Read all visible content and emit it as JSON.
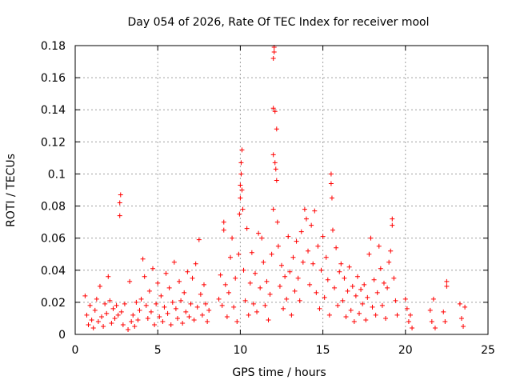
{
  "chart_data": {
    "type": "scatter",
    "title": "Day 054 of 2026, Rate Of TEC Index for receiver mool",
    "xlabel": "GPS time / hours",
    "ylabel": "ROTI / TECUs",
    "xlim": [
      0,
      25
    ],
    "ylim": [
      0,
      0.18
    ],
    "x_ticks": [
      0,
      5,
      10,
      15,
      20,
      25
    ],
    "x_tick_labels": [
      "0",
      "5",
      "10",
      "15",
      "20",
      "25"
    ],
    "y_ticks": [
      0,
      0.02,
      0.04,
      0.06,
      0.08,
      0.1,
      0.12,
      0.14,
      0.16,
      0.18
    ],
    "y_tick_labels": [
      "0",
      "0.02",
      "0.04",
      "0.06",
      "0.08",
      "0.1",
      "0.12",
      "0.14",
      "0.16",
      "0.18"
    ],
    "grid": true,
    "marker": "plus",
    "marker_color": "#ff0000",
    "series": [
      {
        "name": "ROTI",
        "points": [
          [
            0.6,
            0.024
          ],
          [
            0.7,
            0.012
          ],
          [
            0.8,
            0.006
          ],
          [
            0.9,
            0.018
          ],
          [
            1.0,
            0.009
          ],
          [
            1.1,
            0.004
          ],
          [
            1.2,
            0.015
          ],
          [
            1.3,
            0.022
          ],
          [
            1.4,
            0.008
          ],
          [
            1.5,
            0.03
          ],
          [
            1.6,
            0.011
          ],
          [
            1.7,
            0.005
          ],
          [
            1.8,
            0.019
          ],
          [
            1.9,
            0.013
          ],
          [
            2.0,
            0.036
          ],
          [
            2.1,
            0.021
          ],
          [
            2.2,
            0.007
          ],
          [
            2.3,
            0.016
          ],
          [
            2.4,
            0.01
          ],
          [
            2.5,
            0.018
          ],
          [
            2.6,
            0.012
          ],
          [
            2.7,
            0.074
          ],
          [
            2.7,
            0.082
          ],
          [
            2.75,
            0.087
          ],
          [
            2.8,
            0.014
          ],
          [
            2.9,
            0.006
          ],
          [
            3.0,
            0.019
          ],
          [
            3.2,
            0.003
          ],
          [
            3.3,
            0.033
          ],
          [
            3.4,
            0.008
          ],
          [
            3.5,
            0.012
          ],
          [
            3.6,
            0.005
          ],
          [
            3.7,
            0.02
          ],
          [
            3.8,
            0.009
          ],
          [
            3.9,
            0.015
          ],
          [
            4.0,
            0.022
          ],
          [
            4.1,
            0.047
          ],
          [
            4.2,
            0.036
          ],
          [
            4.3,
            0.018
          ],
          [
            4.4,
            0.01
          ],
          [
            4.5,
            0.027
          ],
          [
            4.6,
            0.014
          ],
          [
            4.7,
            0.041
          ],
          [
            4.8,
            0.006
          ],
          [
            4.9,
            0.019
          ],
          [
            5.0,
            0.032
          ],
          [
            5.1,
            0.011
          ],
          [
            5.2,
            0.024
          ],
          [
            5.3,
            0.008
          ],
          [
            5.4,
            0.017
          ],
          [
            5.5,
            0.038
          ],
          [
            5.6,
            0.013
          ],
          [
            5.7,
            0.029
          ],
          [
            5.8,
            0.006
          ],
          [
            5.9,
            0.02
          ],
          [
            6.0,
            0.045
          ],
          [
            6.1,
            0.016
          ],
          [
            6.2,
            0.01
          ],
          [
            6.3,
            0.033
          ],
          [
            6.4,
            0.021
          ],
          [
            6.5,
            0.007
          ],
          [
            6.6,
            0.026
          ],
          [
            6.7,
            0.014
          ],
          [
            6.8,
            0.039
          ],
          [
            6.9,
            0.011
          ],
          [
            7.0,
            0.019
          ],
          [
            7.1,
            0.035
          ],
          [
            7.2,
            0.009
          ],
          [
            7.3,
            0.044
          ],
          [
            7.4,
            0.017
          ],
          [
            7.5,
            0.059
          ],
          [
            7.6,
            0.025
          ],
          [
            7.7,
            0.012
          ],
          [
            7.8,
            0.031
          ],
          [
            7.9,
            0.019
          ],
          [
            8.0,
            0.008
          ],
          [
            8.1,
            0.015
          ],
          [
            8.7,
            0.022
          ],
          [
            8.8,
            0.037
          ],
          [
            8.9,
            0.018
          ],
          [
            9.0,
            0.07
          ],
          [
            9.0,
            0.065
          ],
          [
            9.1,
            0.031
          ],
          [
            9.2,
            0.011
          ],
          [
            9.3,
            0.026
          ],
          [
            9.4,
            0.048
          ],
          [
            9.5,
            0.06
          ],
          [
            9.6,
            0.017
          ],
          [
            9.7,
            0.035
          ],
          [
            9.8,
            0.008
          ],
          [
            9.9,
            0.05
          ],
          [
            9.95,
            0.075
          ],
          [
            10.0,
            0.085
          ],
          [
            10.0,
            0.093
          ],
          [
            10.05,
            0.1
          ],
          [
            10.05,
            0.107
          ],
          [
            10.1,
            0.115
          ],
          [
            10.1,
            0.09
          ],
          [
            10.15,
            0.078
          ],
          [
            10.2,
            0.04
          ],
          [
            10.3,
            0.021
          ],
          [
            10.4,
            0.066
          ],
          [
            10.5,
            0.012
          ],
          [
            10.6,
            0.032
          ],
          [
            10.7,
            0.051
          ],
          [
            10.8,
            0.019
          ],
          [
            10.9,
            0.038
          ],
          [
            11.0,
            0.014
          ],
          [
            11.1,
            0.063
          ],
          [
            11.2,
            0.029
          ],
          [
            11.3,
            0.06
          ],
          [
            11.4,
            0.045
          ],
          [
            11.5,
            0.018
          ],
          [
            11.6,
            0.033
          ],
          [
            11.7,
            0.009
          ],
          [
            11.8,
            0.025
          ],
          [
            11.9,
            0.05
          ],
          [
            12.0,
            0.078
          ],
          [
            12.0,
            0.112
          ],
          [
            12.0,
            0.141
          ],
          [
            12.0,
            0.172
          ],
          [
            12.05,
            0.176
          ],
          [
            12.05,
            0.179
          ],
          [
            12.1,
            0.139
          ],
          [
            12.1,
            0.107
          ],
          [
            12.15,
            0.103
          ],
          [
            12.2,
            0.128
          ],
          [
            12.2,
            0.096
          ],
          [
            12.25,
            0.07
          ],
          [
            12.3,
            0.055
          ],
          [
            12.4,
            0.03
          ],
          [
            12.5,
            0.043
          ],
          [
            12.6,
            0.016
          ],
          [
            12.7,
            0.036
          ],
          [
            12.8,
            0.022
          ],
          [
            12.9,
            0.061
          ],
          [
            13.0,
            0.039
          ],
          [
            13.1,
            0.012
          ],
          [
            13.2,
            0.048
          ],
          [
            13.3,
            0.027
          ],
          [
            13.4,
            0.058
          ],
          [
            13.5,
            0.035
          ],
          [
            13.6,
            0.021
          ],
          [
            13.7,
            0.064
          ],
          [
            13.8,
            0.045
          ],
          [
            13.9,
            0.078
          ],
          [
            14.0,
            0.072
          ],
          [
            14.1,
            0.052
          ],
          [
            14.2,
            0.031
          ],
          [
            14.3,
            0.068
          ],
          [
            14.4,
            0.044
          ],
          [
            14.5,
            0.077
          ],
          [
            14.6,
            0.026
          ],
          [
            14.7,
            0.055
          ],
          [
            14.8,
            0.016
          ],
          [
            14.9,
            0.04
          ],
          [
            15.0,
            0.061
          ],
          [
            15.1,
            0.023
          ],
          [
            15.2,
            0.048
          ],
          [
            15.3,
            0.034
          ],
          [
            15.4,
            0.012
          ],
          [
            15.5,
            0.1
          ],
          [
            15.5,
            0.094
          ],
          [
            15.55,
            0.085
          ],
          [
            15.6,
            0.065
          ],
          [
            15.7,
            0.029
          ],
          [
            15.8,
            0.054
          ],
          [
            15.9,
            0.018
          ],
          [
            16.0,
            0.039
          ],
          [
            16.1,
            0.044
          ],
          [
            16.2,
            0.021
          ],
          [
            16.3,
            0.035
          ],
          [
            16.4,
            0.011
          ],
          [
            16.5,
            0.027
          ],
          [
            16.6,
            0.042
          ],
          [
            16.7,
            0.015
          ],
          [
            16.8,
            0.03
          ],
          [
            16.9,
            0.008
          ],
          [
            17.0,
            0.024
          ],
          [
            17.1,
            0.036
          ],
          [
            17.2,
            0.013
          ],
          [
            17.3,
            0.028
          ],
          [
            17.4,
            0.019
          ],
          [
            17.5,
            0.031
          ],
          [
            17.6,
            0.009
          ],
          [
            17.7,
            0.023
          ],
          [
            17.8,
            0.05
          ],
          [
            17.9,
            0.06
          ],
          [
            18.0,
            0.017
          ],
          [
            18.1,
            0.034
          ],
          [
            18.2,
            0.012
          ],
          [
            18.3,
            0.026
          ],
          [
            18.4,
            0.055
          ],
          [
            18.5,
            0.041
          ],
          [
            18.6,
            0.018
          ],
          [
            18.7,
            0.032
          ],
          [
            18.8,
            0.01
          ],
          [
            18.9,
            0.029
          ],
          [
            19.0,
            0.045
          ],
          [
            19.1,
            0.052
          ],
          [
            19.2,
            0.068
          ],
          [
            19.2,
            0.072
          ],
          [
            19.3,
            0.035
          ],
          [
            19.4,
            0.021
          ],
          [
            19.5,
            0.012
          ],
          [
            20.0,
            0.022
          ],
          [
            20.1,
            0.016
          ],
          [
            20.2,
            0.008
          ],
          [
            20.3,
            0.012
          ],
          [
            20.4,
            0.004
          ],
          [
            21.5,
            0.015
          ],
          [
            21.6,
            0.008
          ],
          [
            21.7,
            0.022
          ],
          [
            21.8,
            0.004
          ],
          [
            22.3,
            0.014
          ],
          [
            22.4,
            0.008
          ],
          [
            22.5,
            0.03
          ],
          [
            22.5,
            0.033
          ],
          [
            23.3,
            0.019
          ],
          [
            23.4,
            0.01
          ],
          [
            23.5,
            0.005
          ],
          [
            23.6,
            0.017
          ]
        ]
      }
    ]
  }
}
